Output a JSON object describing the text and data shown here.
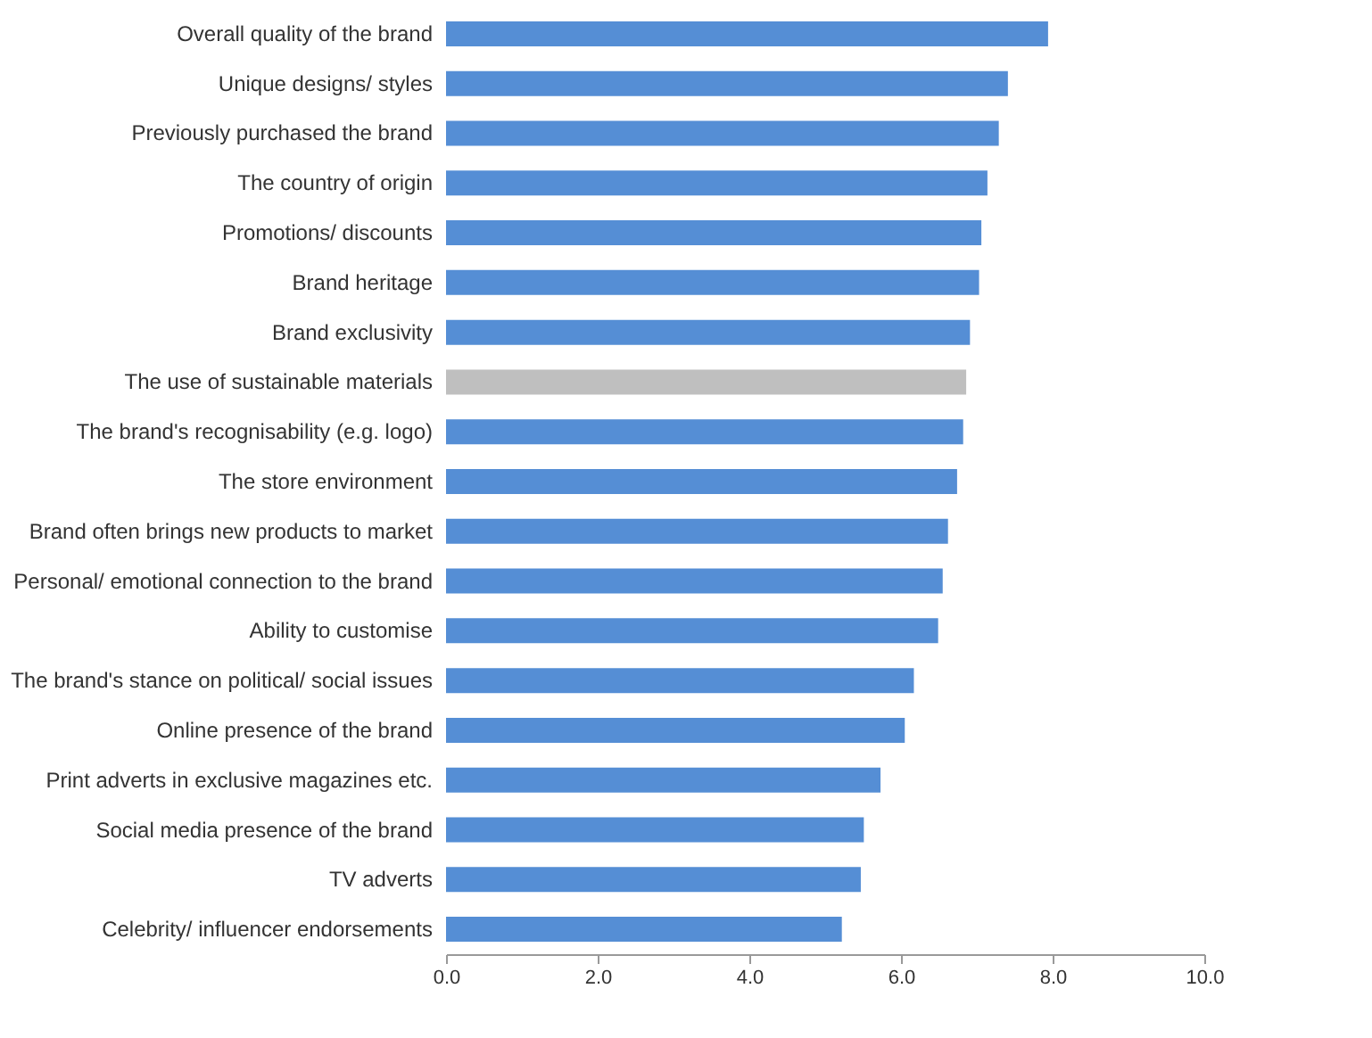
{
  "chart_data": {
    "type": "bar",
    "orientation": "horizontal",
    "categories": [
      "Overall quality of the brand",
      "Unique designs/ styles",
      "Previously purchased the brand",
      "The country of origin",
      "Promotions/ discounts",
      "Brand heritage",
      "Brand exclusivity",
      "The use of sustainable materials",
      "The brand's recognisability (e.g. logo)",
      "The store environment",
      "Brand often brings new products to market",
      "Personal/ emotional connection to the brand",
      "Ability to customise",
      "The brand's stance on political/ social issues",
      "Online presence of the brand",
      "Print adverts in exclusive magazines etc.",
      "Social media presence of the brand",
      "TV adverts",
      "Celebrity/ influencer endorsements"
    ],
    "values": [
      7.94,
      7.41,
      7.29,
      7.14,
      7.06,
      7.03,
      6.91,
      6.86,
      6.82,
      6.74,
      6.62,
      6.55,
      6.49,
      6.17,
      6.05,
      5.73,
      5.51,
      5.47,
      5.22
    ],
    "colors": [
      "#558ed5",
      "#558ed5",
      "#558ed5",
      "#558ed5",
      "#558ed5",
      "#558ed5",
      "#558ed5",
      "#bfbfbf",
      "#558ed5",
      "#558ed5",
      "#558ed5",
      "#558ed5",
      "#558ed5",
      "#558ed5",
      "#558ed5",
      "#558ed5",
      "#558ed5",
      "#558ed5",
      "#558ed5"
    ],
    "xlim": [
      0,
      10
    ],
    "xticks": [
      {
        "value": 0,
        "label": "0.0"
      },
      {
        "value": 2,
        "label": "2.0"
      },
      {
        "value": 4,
        "label": "4.0"
      },
      {
        "value": 6,
        "label": "6.0"
      },
      {
        "value": 8,
        "label": "8.0"
      },
      {
        "value": 10,
        "label": "10.0"
      }
    ],
    "grid": false
  }
}
